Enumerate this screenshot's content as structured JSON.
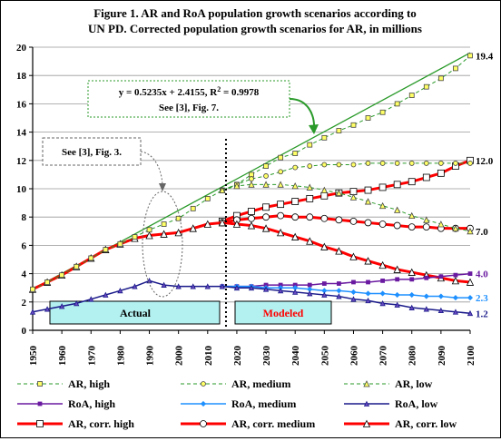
{
  "chart_data": {
    "type": "line",
    "title_line1": "Figure 1. AR and RoA population growth scenarios according to",
    "title_line2": "UN PD. Corrected population growth  scenarios  for AR, in millions",
    "xlim": [
      1950,
      2100
    ],
    "ylim": [
      0,
      20
    ],
    "xticks": [
      "1950",
      "1960",
      "1970",
      "1980",
      "1990",
      "2000",
      "2010",
      "2020",
      "2030",
      "2040",
      "2050",
      "2060",
      "2070",
      "2080",
      "2090",
      "2100"
    ],
    "yticks": [
      "0",
      "2",
      "4",
      "6",
      "8",
      "10",
      "12",
      "14",
      "16",
      "18",
      "20"
    ],
    "regression_line1": "y = 0.5235x + 2.4155, R",
    "regression_sup": "2",
    "regression_line1_end": " = 0.9978",
    "regression_line2": "See [3], Fig. 7.",
    "see_fig3": "See [3], Fig. 3.",
    "actual_label": "Actual",
    "modeled_label": "Modeled",
    "end_labels": [
      "19.4",
      "12.0",
      "7.0",
      "4.0",
      "2.3",
      "1.2"
    ],
    "colors": {
      "green": "#2a9a2a",
      "red": "#ff0000",
      "purple": "#6a1aa0",
      "blue": "#1e90ff",
      "navy": "#1a1a8a",
      "box_fill": "#b3f0f0",
      "square_fill": "#ffff66"
    },
    "series": [
      {
        "name": "AR, high",
        "x": [
          1950,
          1955,
          1960,
          1965,
          1970,
          1975,
          1980,
          1985,
          1990,
          1995,
          2000,
          2005,
          2010,
          2015,
          2020,
          2025,
          2030,
          2035,
          2040,
          2045,
          2050,
          2055,
          2060,
          2065,
          2070,
          2075,
          2080,
          2085,
          2090,
          2095,
          2100
        ],
        "values": [
          2.9,
          3.4,
          3.9,
          4.5,
          5.1,
          5.7,
          6.1,
          6.6,
          7.1,
          7.5,
          7.9,
          8.6,
          9.3,
          9.9,
          10.3,
          11.0,
          11.6,
          12.2,
          12.5,
          13.1,
          13.6,
          14.1,
          14.5,
          15.0,
          15.4,
          16.0,
          16.6,
          17.2,
          17.8,
          18.5,
          19.4
        ]
      },
      {
        "name": "AR, medium",
        "x": [
          2015,
          2020,
          2025,
          2030,
          2035,
          2040,
          2045,
          2050,
          2055,
          2060,
          2065,
          2070,
          2075,
          2080,
          2085,
          2090,
          2095,
          2100
        ],
        "values": [
          9.9,
          10.3,
          10.7,
          10.9,
          11.2,
          11.5,
          11.6,
          11.7,
          11.7,
          11.7,
          11.8,
          11.8,
          11.8,
          11.8,
          11.8,
          11.8,
          11.8,
          11.8
        ]
      },
      {
        "name": "AR, low",
        "x": [
          2015,
          2020,
          2025,
          2030,
          2035,
          2040,
          2045,
          2050,
          2055,
          2060,
          2065,
          2070,
          2075,
          2080,
          2085,
          2090,
          2095,
          2100
        ],
        "values": [
          9.9,
          10.2,
          10.3,
          10.3,
          10.3,
          10.2,
          10.1,
          9.9,
          9.7,
          9.4,
          9.1,
          8.8,
          8.5,
          8.1,
          7.8,
          7.5,
          7.2,
          7.0
        ]
      },
      {
        "name": "RoA, high",
        "x": [
          2015,
          2020,
          2025,
          2030,
          2035,
          2040,
          2045,
          2050,
          2055,
          2060,
          2065,
          2070,
          2075,
          2080,
          2085,
          2090,
          2095,
          2100
        ],
        "values": [
          3.1,
          3.1,
          3.1,
          3.2,
          3.2,
          3.2,
          3.2,
          3.3,
          3.3,
          3.4,
          3.4,
          3.5,
          3.6,
          3.6,
          3.7,
          3.8,
          3.9,
          4.0
        ]
      },
      {
        "name": "RoA, medium",
        "x": [
          2015,
          2020,
          2025,
          2030,
          2035,
          2040,
          2045,
          2050,
          2055,
          2060,
          2065,
          2070,
          2075,
          2080,
          2085,
          2090,
          2095,
          2100
        ],
        "values": [
          3.1,
          3.1,
          3.1,
          3.0,
          3.0,
          3.0,
          2.9,
          2.8,
          2.8,
          2.7,
          2.6,
          2.6,
          2.5,
          2.5,
          2.4,
          2.4,
          2.3,
          2.3
        ]
      },
      {
        "name": "RoA, low",
        "x": [
          1950,
          1955,
          1960,
          1965,
          1970,
          1975,
          1980,
          1985,
          1990,
          1995,
          2000,
          2005,
          2010,
          2015,
          2020,
          2025,
          2030,
          2035,
          2040,
          2045,
          2050,
          2055,
          2060,
          2065,
          2070,
          2075,
          2080,
          2085,
          2090,
          2095,
          2100
        ],
        "values": [
          1.3,
          1.5,
          1.7,
          1.9,
          2.2,
          2.5,
          2.8,
          3.1,
          3.5,
          3.2,
          3.1,
          3.1,
          3.1,
          3.1,
          3.0,
          3.0,
          2.9,
          2.8,
          2.7,
          2.6,
          2.5,
          2.4,
          2.2,
          2.1,
          1.9,
          1.8,
          1.6,
          1.5,
          1.4,
          1.3,
          1.2
        ]
      },
      {
        "name": "AR, corr. high",
        "x": [
          2015,
          2020,
          2025,
          2030,
          2035,
          2040,
          2045,
          2050,
          2055,
          2060,
          2065,
          2070,
          2075,
          2080,
          2085,
          2090,
          2095,
          2100
        ],
        "values": [
          7.7,
          8.1,
          8.4,
          8.7,
          8.9,
          9.1,
          9.3,
          9.5,
          9.7,
          9.8,
          9.9,
          10.1,
          10.3,
          10.5,
          10.8,
          11.1,
          11.6,
          12.0
        ]
      },
      {
        "name": "AR, corr. medium",
        "x": [
          2015,
          2020,
          2025,
          2030,
          2035,
          2040,
          2045,
          2050,
          2055,
          2060,
          2065,
          2070,
          2075,
          2080,
          2085,
          2090,
          2095,
          2100
        ],
        "values": [
          7.6,
          7.8,
          7.9,
          8.0,
          8.1,
          8.0,
          8.0,
          7.9,
          7.8,
          7.7,
          7.6,
          7.5,
          7.4,
          7.3,
          7.3,
          7.2,
          7.2,
          7.2
        ]
      },
      {
        "name": "AR, corr. low",
        "x": [
          1950,
          1955,
          1960,
          1965,
          1970,
          1975,
          1980,
          1985,
          1990,
          1995,
          2000,
          2005,
          2010,
          2015,
          2020,
          2025,
          2030,
          2035,
          2040,
          2045,
          2050,
          2055,
          2060,
          2065,
          2070,
          2075,
          2080,
          2085,
          2090,
          2095,
          2100
        ],
        "values": [
          2.9,
          3.4,
          3.9,
          4.5,
          5.1,
          5.7,
          6.1,
          6.5,
          6.7,
          6.8,
          6.9,
          7.2,
          7.5,
          7.6,
          7.5,
          7.4,
          7.2,
          6.9,
          6.6,
          6.3,
          5.9,
          5.6,
          5.2,
          4.9,
          4.6,
          4.3,
          4.1,
          3.9,
          3.7,
          3.5,
          3.4
        ]
      }
    ],
    "trend": {
      "x": [
        1950,
        2100
      ],
      "values": [
        2.9,
        19.6
      ]
    }
  }
}
